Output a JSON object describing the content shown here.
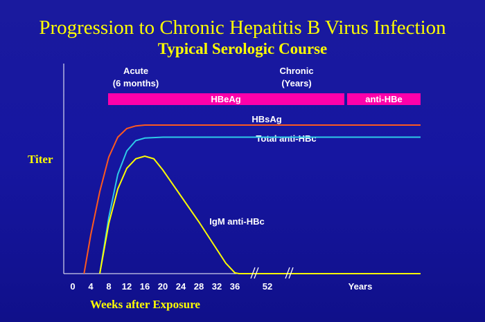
{
  "chart_data": {
    "type": "line",
    "title": "Progression to Chronic Hepatitis B Virus Infection",
    "subtitle": "Typical Serologic Course",
    "ylabel": "Titer",
    "xlabel": "Weeks after Exposure",
    "x_ticks": [
      "0",
      "4",
      "8",
      "12",
      "16",
      "20",
      "24",
      "28",
      "32",
      "36",
      "52",
      "Years"
    ],
    "phases": [
      {
        "label_lines": [
          "Acute",
          "(6 months)"
        ]
      },
      {
        "label_lines": [
          "Chronic",
          "(Years)"
        ]
      }
    ],
    "bars": [
      {
        "name": "HBeAg",
        "color": "#ff00aa"
      },
      {
        "name": "anti-HBe",
        "color": "#ff00aa"
      }
    ],
    "series": [
      {
        "name": "HBsAg",
        "color": "#ff5a1e",
        "points": [
          [
            2.5,
            0
          ],
          [
            4,
            4.5
          ],
          [
            6,
            9.5
          ],
          [
            8,
            13.5
          ],
          [
            10,
            15.8
          ],
          [
            12,
            16.8
          ],
          [
            14,
            17.1
          ],
          [
            16,
            17.2
          ],
          [
            20,
            17.2
          ],
          [
            36,
            17.2
          ],
          [
            52,
            17.2
          ],
          [
            70,
            17.2
          ]
        ]
      },
      {
        "name": "Total anti-HBc",
        "color": "#2ecbe8",
        "points": [
          [
            6,
            0
          ],
          [
            8,
            6.5
          ],
          [
            10,
            11.5
          ],
          [
            12,
            14.2
          ],
          [
            14,
            15.4
          ],
          [
            16,
            15.7
          ],
          [
            20,
            15.8
          ],
          [
            36,
            15.8
          ],
          [
            52,
            15.8
          ],
          [
            70,
            15.8
          ]
        ]
      },
      {
        "name": "IgM anti-HBc",
        "color": "#ffff00",
        "points": [
          [
            6,
            0
          ],
          [
            8,
            5.8
          ],
          [
            10,
            9.8
          ],
          [
            12,
            12.2
          ],
          [
            14,
            13.3
          ],
          [
            16,
            13.6
          ],
          [
            18,
            13.3
          ],
          [
            20,
            12
          ],
          [
            24,
            9
          ],
          [
            28,
            6
          ],
          [
            32,
            2.8
          ],
          [
            34,
            1.2
          ],
          [
            36,
            0.1
          ],
          [
            38,
            0
          ],
          [
            52,
            0
          ],
          [
            70,
            0
          ]
        ]
      }
    ]
  }
}
